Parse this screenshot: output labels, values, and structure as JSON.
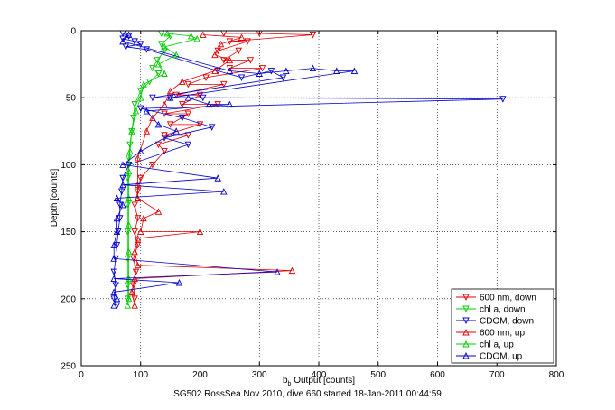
{
  "chart_data": {
    "type": "scatter",
    "xlabel_main": "b",
    "xlabel_sub": "b",
    "xlabel_rest": " Output [counts]",
    "ylabel": "Depth [counts]",
    "footer": "SG502 RossSea Nov 2010, dive 660 started 18-Jan-2011 00:44:59",
    "xlim": [
      0,
      800
    ],
    "ylim": [
      0,
      250
    ],
    "y_reversed": true,
    "xticks": [
      "0",
      "100",
      "200",
      "300",
      "400",
      "500",
      "600",
      "700",
      "800"
    ],
    "yticks": [
      "0",
      "50",
      "100",
      "150",
      "200",
      "250"
    ],
    "grid": "dotted",
    "legend_position": "bottom-right",
    "colors": {
      "red": "#e00000",
      "green": "#00cc00",
      "blue": "#0000cc"
    },
    "series": [
      {
        "name": "600 nm, down",
        "color": "#e00000",
        "marker": "triangle-down",
        "points": [
          [
            240,
            2
          ],
          [
            300,
            2
          ],
          [
            390,
            3
          ],
          [
            250,
            8
          ],
          [
            280,
            8
          ],
          [
            230,
            15
          ],
          [
            265,
            15
          ],
          [
            240,
            22
          ],
          [
            285,
            22
          ],
          [
            250,
            28
          ],
          [
            305,
            28
          ],
          [
            210,
            35
          ],
          [
            180,
            40
          ],
          [
            240,
            40
          ],
          [
            160,
            48
          ],
          [
            200,
            48
          ],
          [
            170,
            55
          ],
          [
            230,
            55
          ],
          [
            140,
            62
          ],
          [
            180,
            62
          ],
          [
            150,
            70
          ],
          [
            200,
            70
          ],
          [
            140,
            78
          ],
          [
            180,
            78
          ],
          [
            130,
            85
          ],
          [
            140,
            90
          ],
          [
            120,
            100
          ],
          [
            100,
            110
          ],
          [
            95,
            120
          ],
          [
            90,
            130
          ],
          [
            95,
            140
          ],
          [
            90,
            150
          ],
          [
            95,
            160
          ],
          [
            88,
            170
          ],
          [
            92,
            180
          ],
          [
            88,
            190
          ],
          [
            90,
            200
          ]
        ]
      },
      {
        "name": "chl a, down",
        "color": "#00cc00",
        "marker": "triangle-down",
        "points": [
          [
            135,
            2
          ],
          [
            150,
            4
          ],
          [
            135,
            10
          ],
          [
            140,
            15
          ],
          [
            128,
            22
          ],
          [
            120,
            28
          ],
          [
            130,
            32
          ],
          [
            115,
            38
          ],
          [
            100,
            45
          ],
          [
            90,
            55
          ],
          [
            88,
            65
          ],
          [
            85,
            75
          ],
          [
            82,
            85
          ],
          [
            80,
            95
          ],
          [
            78,
            110
          ],
          [
            78,
            130
          ],
          [
            78,
            150
          ],
          [
            78,
            170
          ],
          [
            78,
            190
          ],
          [
            78,
            200
          ]
        ]
      },
      {
        "name": "CDOM, down",
        "color": "#0000cc",
        "marker": "triangle-down",
        "points": [
          [
            70,
            2
          ],
          [
            80,
            4
          ],
          [
            70,
            6
          ],
          [
            90,
            8
          ],
          [
            100,
            10
          ],
          [
            75,
            12
          ],
          [
            110,
            14
          ],
          [
            230,
            30
          ],
          [
            270,
            35
          ],
          [
            320,
            30
          ],
          [
            340,
            35
          ],
          [
            120,
            50
          ],
          [
            150,
            50
          ],
          [
            205,
            50
          ],
          [
            710,
            51
          ],
          [
            100,
            58
          ],
          [
            170,
            65
          ],
          [
            220,
            72
          ],
          [
            140,
            80
          ],
          [
            180,
            85
          ],
          [
            80,
            100
          ],
          [
            70,
            110
          ],
          [
            68,
            120
          ],
          [
            65,
            130
          ],
          [
            65,
            140
          ],
          [
            62,
            150
          ],
          [
            60,
            160
          ],
          [
            58,
            170
          ],
          [
            55,
            180
          ],
          [
            58,
            190
          ],
          [
            55,
            200
          ],
          [
            60,
            205
          ]
        ]
      },
      {
        "name": "600 nm, up",
        "color": "#e00000",
        "marker": "triangle-up",
        "points": [
          [
            205,
            3
          ],
          [
            270,
            5
          ],
          [
            235,
            10
          ],
          [
            225,
            18
          ],
          [
            250,
            22
          ],
          [
            225,
            30
          ],
          [
            170,
            38
          ],
          [
            150,
            45
          ],
          [
            140,
            55
          ],
          [
            120,
            65
          ],
          [
            110,
            75
          ],
          [
            95,
            95
          ],
          [
            95,
            115
          ],
          [
            95,
            125
          ],
          [
            130,
            135
          ],
          [
            105,
            140
          ],
          [
            100,
            150
          ],
          [
            200,
            150
          ],
          [
            95,
            155
          ],
          [
            90,
            165
          ],
          [
            95,
            175
          ],
          [
            355,
            179
          ],
          [
            90,
            185
          ],
          [
            85,
            195
          ],
          [
            90,
            205
          ]
        ]
      },
      {
        "name": "chl a, up",
        "color": "#00cc00",
        "marker": "triangle-up",
        "points": [
          [
            145,
            2
          ],
          [
            185,
            4
          ],
          [
            195,
            6
          ],
          [
            140,
            12
          ],
          [
            160,
            18
          ],
          [
            130,
            25
          ],
          [
            140,
            32
          ],
          [
            105,
            40
          ],
          [
            100,
            50
          ],
          [
            92,
            60
          ],
          [
            85,
            75
          ],
          [
            82,
            90
          ],
          [
            80,
            105
          ],
          [
            80,
            125
          ],
          [
            80,
            145
          ],
          [
            80,
            165
          ],
          [
            80,
            185
          ],
          [
            80,
            200
          ],
          [
            78,
            205
          ]
        ]
      },
      {
        "name": "CDOM, up",
        "color": "#0000cc",
        "marker": "triangle-up",
        "points": [
          [
            80,
            3
          ],
          [
            70,
            8
          ],
          [
            250,
            30
          ],
          [
            300,
            32
          ],
          [
            345,
            30
          ],
          [
            390,
            28
          ],
          [
            430,
            30
          ],
          [
            460,
            30
          ],
          [
            150,
            50
          ],
          [
            180,
            50
          ],
          [
            215,
            55
          ],
          [
            250,
            55
          ],
          [
            110,
            60
          ],
          [
            130,
            70
          ],
          [
            160,
            75
          ],
          [
            100,
            90
          ],
          [
            70,
            100
          ],
          [
            230,
            110
          ],
          [
            70,
            115
          ],
          [
            240,
            120
          ],
          [
            60,
            125
          ],
          [
            70,
            130
          ],
          [
            60,
            140
          ],
          [
            60,
            150
          ],
          [
            55,
            160
          ],
          [
            55,
            170
          ],
          [
            330,
            180
          ],
          [
            55,
            185
          ],
          [
            165,
            188
          ],
          [
            55,
            195
          ],
          [
            60,
            200
          ],
          [
            55,
            205
          ]
        ]
      }
    ]
  }
}
